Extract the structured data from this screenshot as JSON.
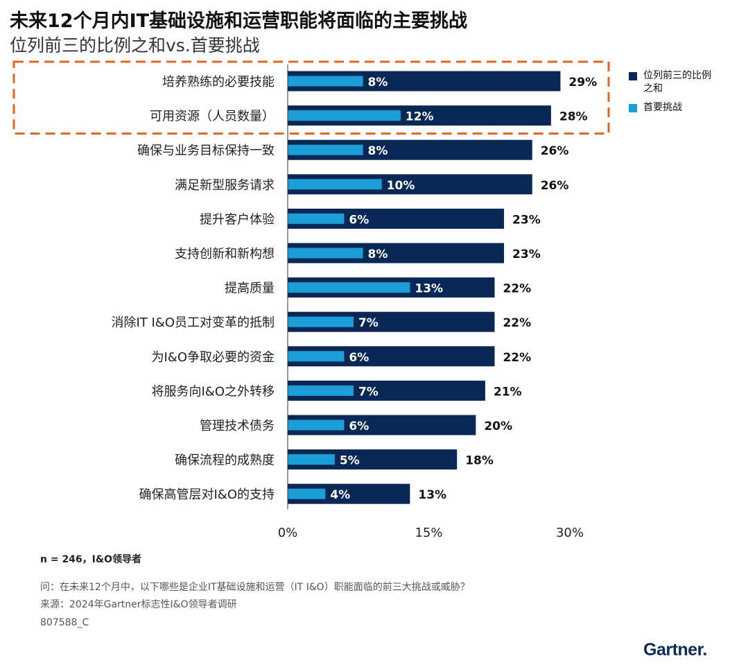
{
  "header": {
    "title": "未来12个月内IT基础设施和运营职能将面临的主要挑战",
    "subtitle": "位列前三的比例之和vs.首要挑战"
  },
  "legend": {
    "items": [
      {
        "label": "位列前三的比例之和",
        "color": "#0a2855"
      },
      {
        "label": "首要挑战",
        "color": "#1b9fd9"
      }
    ]
  },
  "chart_data": {
    "type": "bar",
    "orientation": "horizontal",
    "categories": [
      "培养熟练的必要技能",
      "可用资源（人员数量）",
      "确保与业务目标保持一致",
      "满足新型服务请求",
      "提升客户体验",
      "支持创新和新构想",
      "提高质量",
      "消除IT I&O员工对变革的抵制",
      "为I&O争取必要的资金",
      "将服务向I&O之外转移",
      "管理技术债务",
      "确保流程的成熟度",
      "确保高管层对I&O的支持"
    ],
    "series": [
      {
        "name": "位列前三的比例之和",
        "values": [
          29,
          28,
          26,
          26,
          23,
          23,
          22,
          22,
          22,
          21,
          20,
          18,
          13
        ]
      },
      {
        "name": "首要挑战",
        "values": [
          8,
          12,
          8,
          10,
          6,
          8,
          13,
          7,
          6,
          7,
          6,
          5,
          4
        ]
      }
    ],
    "xlim": [
      0,
      30
    ],
    "xticks": [
      "0%",
      "15%",
      "30%"
    ],
    "value_suffix": "%",
    "highlight": {
      "rows": [
        0,
        1
      ],
      "style": "dashed",
      "color": "#e8631c"
    },
    "grid": false,
    "legend_position": "right"
  },
  "footer": {
    "sample": "n = 246，I&O领导者",
    "question": "问：在未来12个月中，以下哪些是企业IT基础设施和运营（IT I&O）职能面临的前三大挑战或威胁？",
    "source": "来源：2024年Gartner标志性I&O领导者调研",
    "code": "807588_C",
    "logo": "Gartner."
  },
  "colors": {
    "series_total": "#0a2855",
    "series_top": "#1b9fd9",
    "highlight": "#e8631c",
    "axis": "#333333"
  }
}
